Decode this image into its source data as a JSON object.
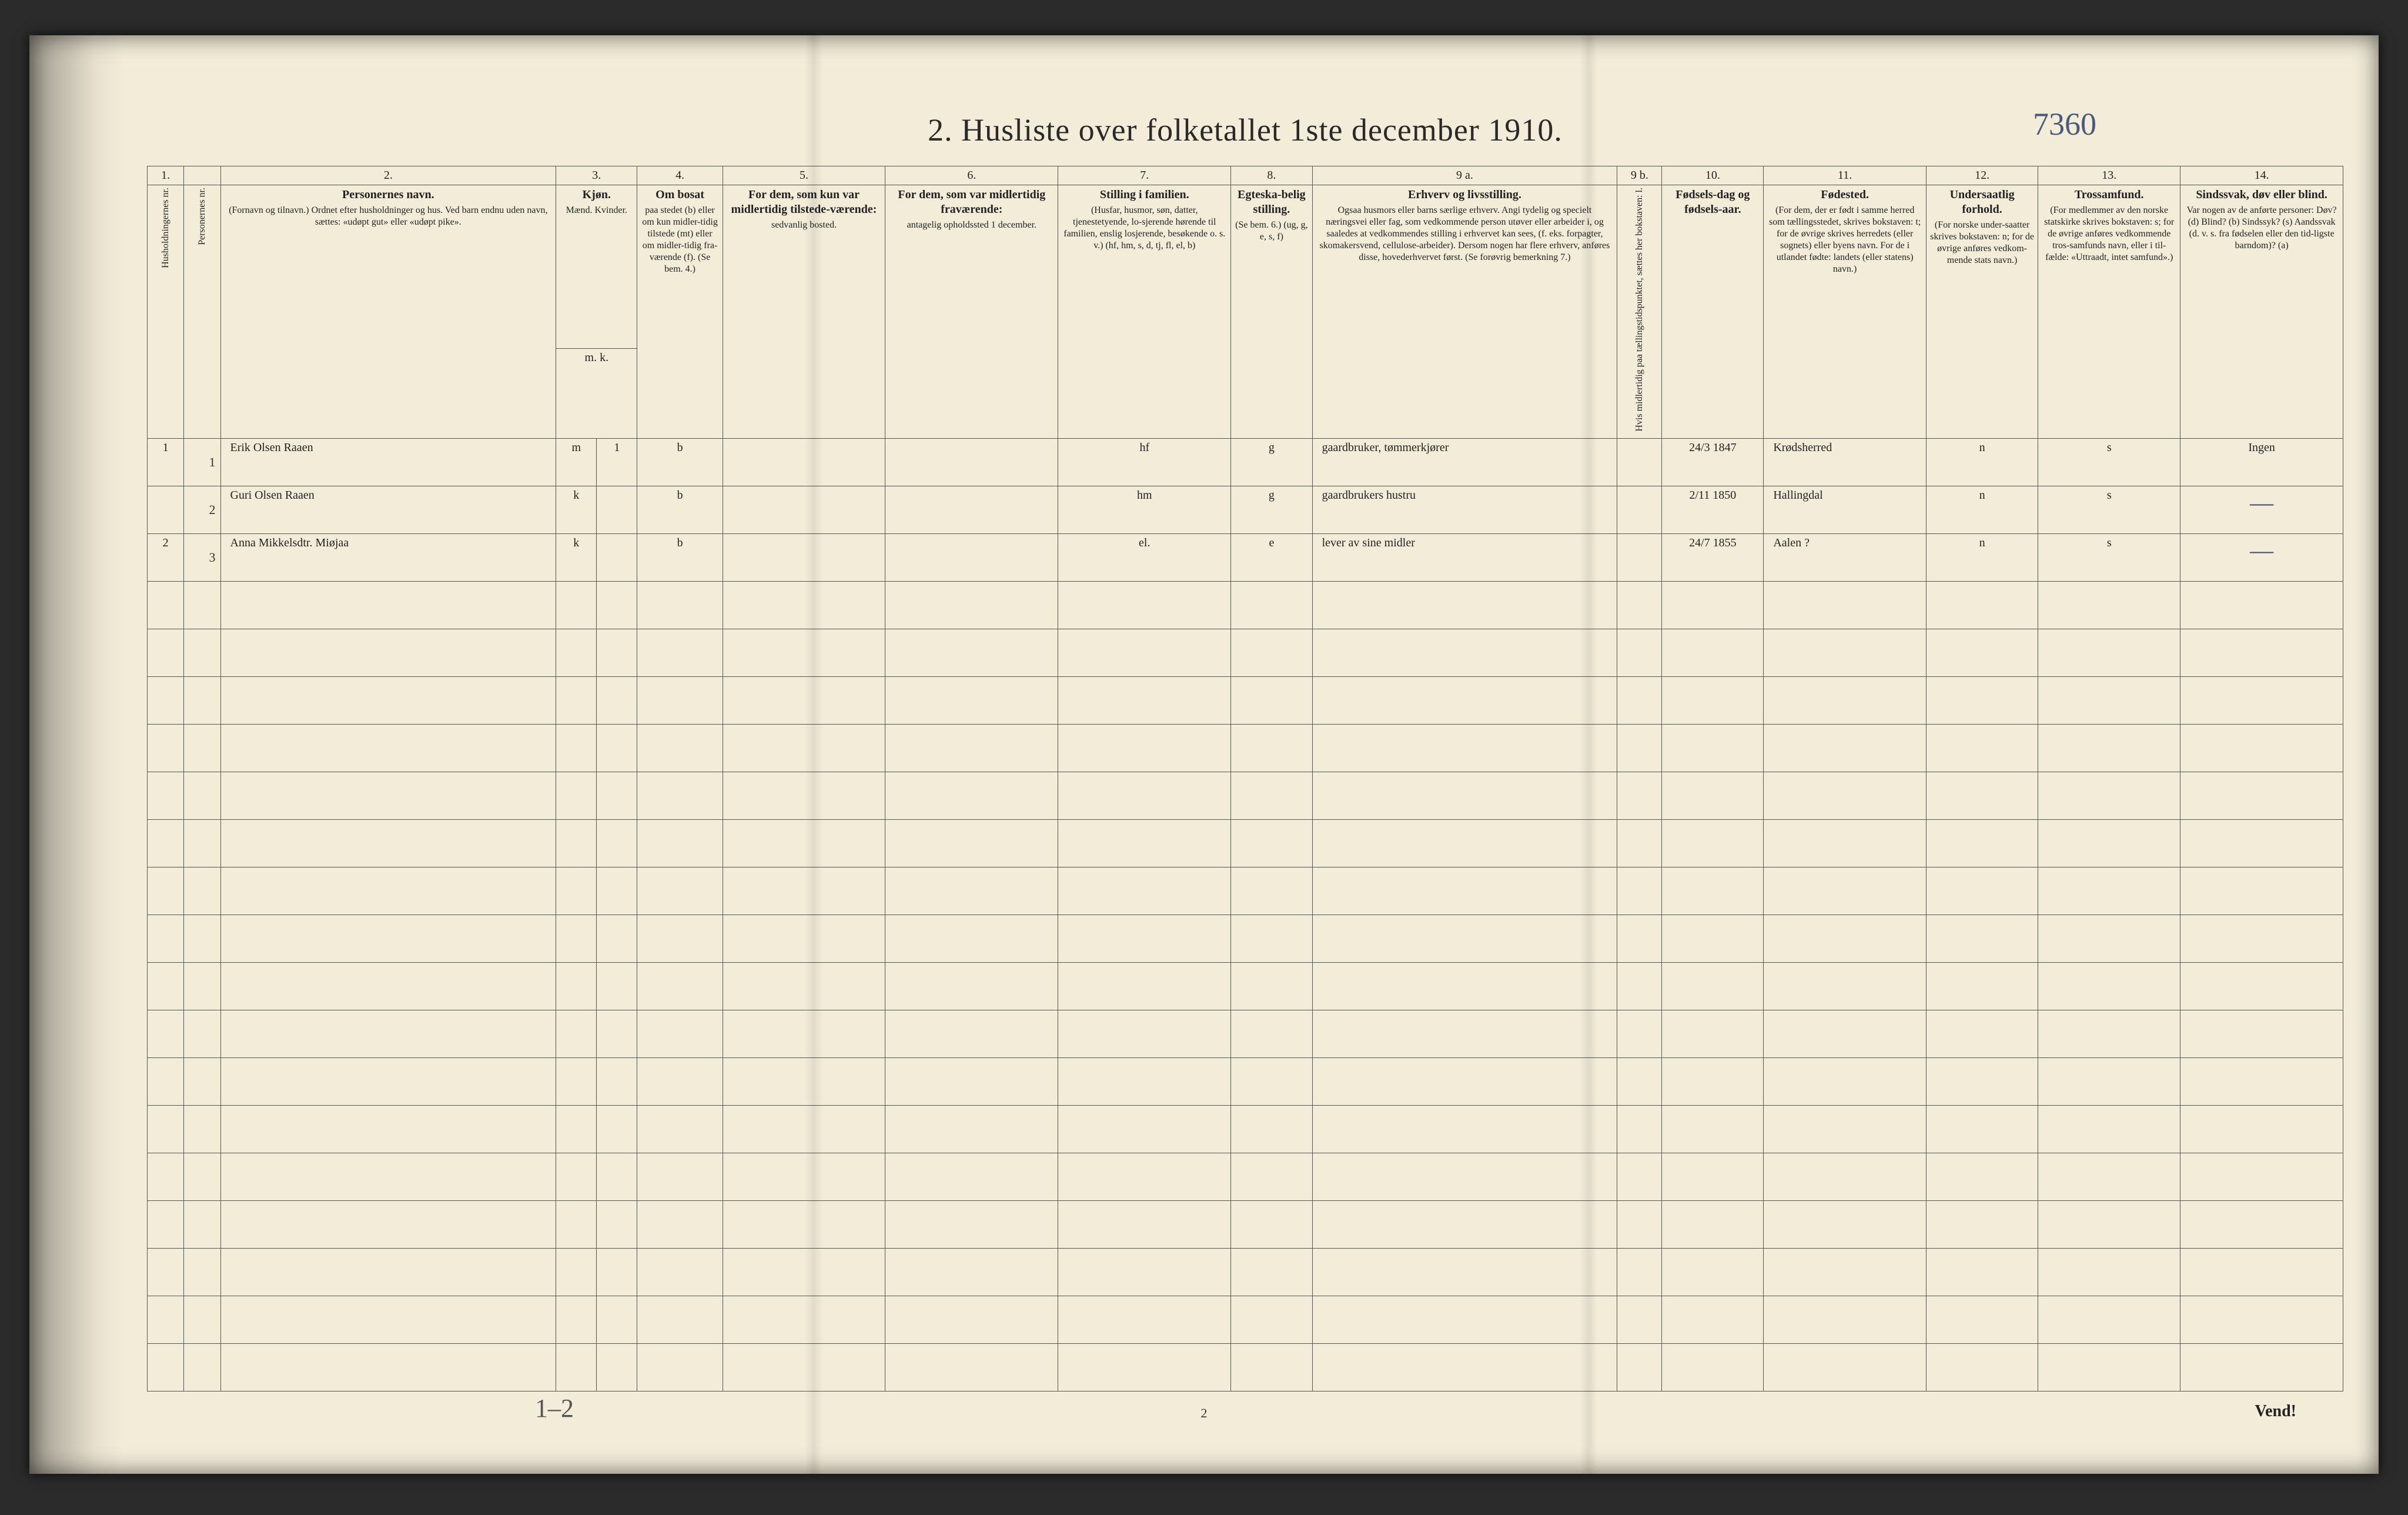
{
  "title": "2.  Husliste over folketallet 1ste december 1910.",
  "hand_page_number": "7360",
  "footer_page_number": "2",
  "footer_hand": "1–2",
  "vend_text": "Vend!",
  "colors": {
    "paper": "#f3ecd9",
    "ink_print": "#2a2a2a",
    "ink_hand": "#3a4a6a",
    "border": "#555555",
    "background": "#2b2b2b"
  },
  "typography": {
    "title_fontsize_pt": 40,
    "header_fontsize_pt": 14,
    "body_hand_fontsize_pt": 26,
    "print_font": "Georgia / Times-like serif",
    "hand_font": "cursive script"
  },
  "layout": {
    "total_rows": 20,
    "filled_rows": 3,
    "columns": 16,
    "aspect": "4096x2576",
    "double_rule_below_header": true,
    "heavy_top_rule": true
  },
  "columns": {
    "nums": [
      "1.",
      "",
      "2.",
      "3.",
      "4.",
      "5.",
      "6.",
      "7.",
      "8.",
      "9 a.",
      "9 b.",
      "10.",
      "11.",
      "12.",
      "13.",
      "14."
    ],
    "c1": {
      "title": "Husholdningernes nr.",
      "rotated": true
    },
    "c1b": {
      "title": "Personernes nr.",
      "rotated": true
    },
    "c2": {
      "title": "Personernes navn.",
      "sub": "(Fornavn og tilnavn.)\nOrdnet efter husholdninger og hus.\nVed barn endnu uden navn, sættes: «udøpt gut» eller «udøpt pike»."
    },
    "c3": {
      "title": "Kjøn.",
      "sub": "Mænd. Kvinder.",
      "sub2": "m.  k."
    },
    "c4": {
      "title": "Om bosat",
      "sub": "paa stedet (b) eller om kun midler-tidig tilstede (mt) eller om midler-tidig fra-værende (f).\n(Se bem. 4.)"
    },
    "c5": {
      "title": "For dem, som kun var midlertidig tilstede-værende:",
      "sub": "sedvanlig bosted."
    },
    "c6": {
      "title": "For dem, som var midlertidig fraværende:",
      "sub": "antagelig opholdssted 1 december."
    },
    "c7": {
      "title": "Stilling i familien.",
      "sub": "(Husfar, husmor, søn, datter, tjenestetyende, lo-sjerende hørende til familien, enslig losjerende, besøkende o. s. v.)\n(hf, hm, s, d, tj, fl, el, b)"
    },
    "c8": {
      "title": "Egteska-belig stilling.",
      "sub": "(Se bem. 6.)\n(ug, g, e, s, f)"
    },
    "c9a": {
      "title": "Erhverv og livsstilling.",
      "sub": "Ogsaa husmors eller barns særlige erhverv. Angi tydelig og specielt næringsvei eller fag, som vedkommende person utøver eller arbeider i, og saaledes at vedkommendes stilling i erhvervet kan sees, (f. eks. forpagter, skomakersvend, cellulose-arbeider). Dersom nogen har flere erhverv, anføres disse, hovederhvervet først.\n(Se forøvrig bemerkning 7.)"
    },
    "c9b": {
      "title": "",
      "sub": "Hvis midlertidig paa tællingstidspunktet, sættes her bokstaven: l.",
      "rotated": true
    },
    "c10": {
      "title": "Fødsels-dag og fødsels-aar."
    },
    "c11": {
      "title": "Fødested.",
      "sub": "(For dem, der er født i samme herred som tællingsstedet, skrives bokstaven: t; for de øvrige skrives herredets (eller sognets) eller byens navn. For de i utlandet fødte: landets (eller statens) navn.)"
    },
    "c12": {
      "title": "Undersaatlig forhold.",
      "sub": "(For norske under-saatter skrives bokstaven: n; for de øvrige anføres vedkom-mende stats navn.)"
    },
    "c13": {
      "title": "Trossamfund.",
      "sub": "(For medlemmer av den norske statskirke skrives bokstaven: s; for de øvrige anføres vedkommende tros-samfunds navn, eller i til-fælde: «Uttraadt, intet samfund».)"
    },
    "c14": {
      "title": "Sindssvak, døv eller blind.",
      "sub": "Var nogen av de anførte personer:\nDøv?    (d)\nBlind?   (b)\nSindssyk? (s)\nAandssvak (d. v. s. fra fødselen eller den tid-ligste barndom)? (a)"
    }
  },
  "rows": [
    {
      "hh": "1",
      "pn": "1",
      "name": "Erik Olsen Raaen",
      "sex": "m",
      "sexcol": "1",
      "bosat": "b",
      "c5": "",
      "c6": "",
      "familie": "hf",
      "egte": "g",
      "erhverv": "gaardbruker, tømmerkjører",
      "c9b": "",
      "fodsel": "24/3 1847",
      "fodested": "Krødsherred",
      "under": "n",
      "tros": "s",
      "sinds": "Ingen"
    },
    {
      "hh": "",
      "pn": "2",
      "name": "Guri Olsen Raaen",
      "sex": "k",
      "sexcol": "",
      "bosat": "b",
      "c5": "",
      "c6": "",
      "familie": "hm",
      "egte": "g",
      "erhverv": "gaardbrukers hustru",
      "c9b": "",
      "fodsel": "2/11 1850",
      "fodested": "Hallingdal",
      "under": "n",
      "tros": "s",
      "sinds": "—"
    },
    {
      "hh": "2",
      "pn": "3",
      "name": "Anna Mikkelsdtr. Miøjaa",
      "sex": "k",
      "sexcol": "",
      "bosat": "b",
      "c5": "",
      "c6": "",
      "familie": "el.",
      "egte": "e",
      "erhverv": "lever av sine midler",
      "c9b": "",
      "fodsel": "24/7 1855",
      "fodested": "Aalen ?",
      "under": "n",
      "tros": "s",
      "sinds": "—"
    }
  ],
  "column_widths_pct": [
    1.8,
    1.8,
    16.5,
    2.0,
    4.2,
    8.0,
    8.5,
    8.5,
    4.0,
    15.0,
    2.2,
    5.0,
    8.0,
    5.5,
    7.0,
    8.0
  ]
}
